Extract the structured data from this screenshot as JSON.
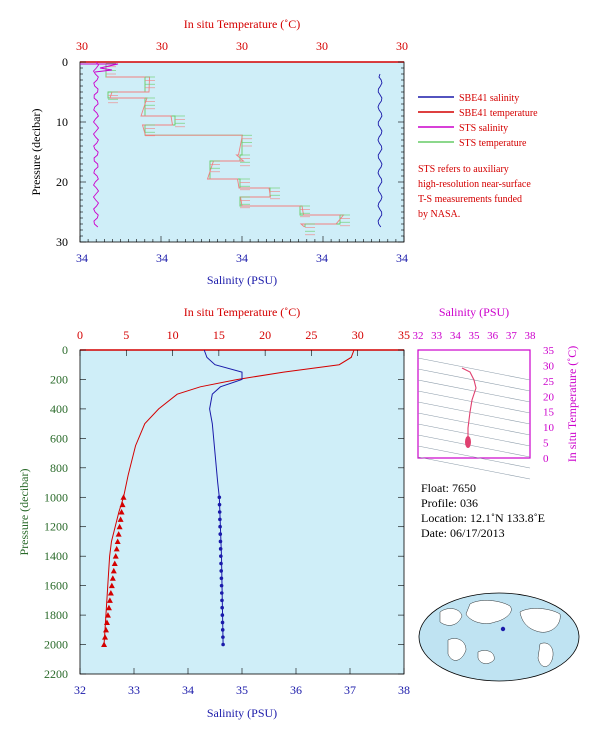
{
  "top": {
    "temp_label": "In situ Temperature (˚C)",
    "temp_ticks": [
      "30",
      "30",
      "30",
      "30",
      "30"
    ],
    "sal_label": "Salinity (PSU)",
    "sal_ticks": [
      "34",
      "34",
      "34",
      "34",
      "34"
    ],
    "pres_label": "Pressure (decibar)",
    "pres_ticks": [
      "0",
      "10",
      "20",
      "30"
    ],
    "legend": [
      {
        "name": "SBE41 salinity",
        "color": "#1a1aaa"
      },
      {
        "name": "SBE41 temperature",
        "color": "#d40000"
      },
      {
        "name": "STS salinity",
        "color": "#cc00cc"
      },
      {
        "name": "STS temperature",
        "color": "#66cc66"
      }
    ],
    "note": [
      "STS refers to auxiliary",
      "high-resolution near-surface",
      "T-S measurements funded",
      "by NASA."
    ]
  },
  "bottom": {
    "temp_label": "In situ Temperature (˚C)",
    "temp_ticks": [
      "0",
      "5",
      "10",
      "15",
      "20",
      "25",
      "30",
      "35"
    ],
    "sal_label": "Salinity (PSU)",
    "sal_ticks": [
      "32",
      "33",
      "34",
      "35",
      "36",
      "37",
      "38"
    ],
    "pres_label": "Pressure (decibar)",
    "pres_ticks": [
      "0",
      "200",
      "400",
      "600",
      "800",
      "1000",
      "1200",
      "1400",
      "1600",
      "1800",
      "2000",
      "2200"
    ]
  },
  "ts": {
    "sal_label": "Salinity (PSU)",
    "sal_ticks": [
      "32",
      "33",
      "34",
      "35",
      "36",
      "37",
      "38"
    ],
    "temp_label": "In situ Temperature (˚C)",
    "temp_ticks": [
      "0",
      "5",
      "10",
      "15",
      "20",
      "25",
      "30",
      "35"
    ]
  },
  "info": {
    "float": "Float:  7650",
    "profile": "Profile:  036",
    "location": "Location:  12.1˚N  133.8˚E",
    "date": "Date:  06/17/2013"
  },
  "colors": {
    "plot_bg": "#cfeef8",
    "temp": "#d40000",
    "salinity": "#1a1aaa",
    "sts_sal": "#cc00cc",
    "sts_temp": "#66cc66",
    "pres_axis": "#2a6a2a"
  },
  "chart_data": [
    {
      "type": "line",
      "xlabel": "Salinity (PSU)",
      "ylabel": "Pressure (decibar)",
      "ylim": [
        30,
        0
      ],
      "series": [
        {
          "name": "SBE41 salinity",
          "x": [
            34.5,
            34.5,
            34.5,
            34.5
          ],
          "y": [
            2,
            10,
            20,
            27
          ]
        },
        {
          "name": "SBE41 temperature",
          "x": [
            29.4,
            29.4,
            29.3,
            29.3
          ],
          "y": [
            2,
            10,
            20,
            27
          ]
        },
        {
          "name": "STS salinity",
          "x": [
            34.1,
            34.1,
            34.1,
            34.1
          ],
          "y": [
            0,
            10,
            20,
            27
          ]
        },
        {
          "name": "STS temperature",
          "x": [
            29.4,
            29.4,
            29.3,
            29.3
          ],
          "y": [
            0,
            10,
            20,
            27
          ]
        }
      ]
    },
    {
      "type": "line",
      "xlabel": "Salinity (PSU)",
      "ylabel": "Pressure (decibar)",
      "xlim": [
        32,
        38
      ],
      "ylim": [
        2200,
        0
      ],
      "series": [
        {
          "name": "Temperature",
          "x": [
            29.6,
            29.3,
            28.0,
            22.0,
            17.0,
            13.0,
            10.5,
            8.5,
            7.0,
            6.0,
            5.2,
            4.7,
            4.2,
            3.8,
            3.4,
            3.2,
            3.0,
            2.8,
            2.6
          ],
          "y": [
            0,
            50,
            100,
            150,
            200,
            250,
            300,
            400,
            500,
            650,
            850,
            1000,
            1100,
            1200,
            1300,
            1400,
            1600,
            1800,
            2000
          ]
        },
        {
          "name": "Salinity",
          "x": [
            34.3,
            34.35,
            34.5,
            35.0,
            35.0,
            34.6,
            34.45,
            34.4,
            34.45,
            34.5,
            34.55,
            34.58,
            34.6,
            34.62,
            34.63,
            34.64,
            34.65
          ],
          "y": [
            0,
            50,
            100,
            150,
            200,
            250,
            300,
            400,
            500,
            700,
            900,
            1000,
            1200,
            1400,
            1600,
            1800,
            2000
          ]
        }
      ]
    }
  ]
}
